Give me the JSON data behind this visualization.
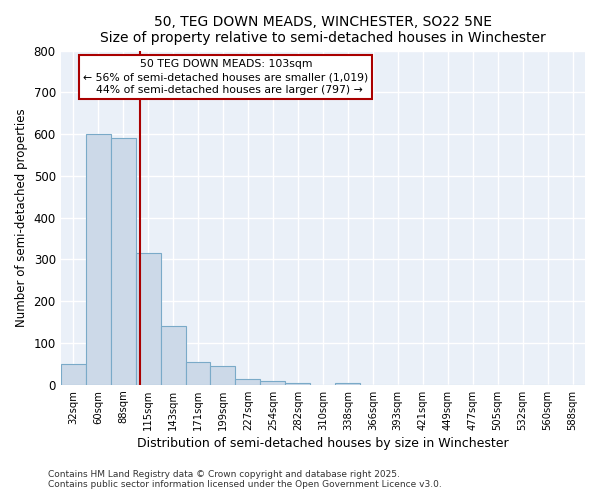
{
  "title": "50, TEG DOWN MEADS, WINCHESTER, SO22 5NE",
  "subtitle": "Size of property relative to semi-detached houses in Winchester",
  "xlabel": "Distribution of semi-detached houses by size in Winchester",
  "ylabel": "Number of semi-detached properties",
  "bar_labels": [
    "32sqm",
    "60sqm",
    "88sqm",
    "115sqm",
    "143sqm",
    "171sqm",
    "199sqm",
    "227sqm",
    "254sqm",
    "282sqm",
    "310sqm",
    "338sqm",
    "366sqm",
    "393sqm",
    "421sqm",
    "449sqm",
    "477sqm",
    "505sqm",
    "532sqm",
    "560sqm",
    "588sqm"
  ],
  "bar_values": [
    50,
    600,
    590,
    315,
    140,
    55,
    45,
    15,
    10,
    5,
    0,
    5,
    0,
    0,
    0,
    0,
    0,
    0,
    0,
    0,
    0
  ],
  "bar_color": "#ccd9e8",
  "bar_edgecolor": "#7aaac8",
  "property_label": "50 TEG DOWN MEADS: 103sqm",
  "pct_smaller": 56,
  "n_smaller": 1019,
  "pct_larger": 44,
  "n_larger": 797,
  "vline_x_index": 2.67,
  "vline_color": "#aa0000",
  "annotation_box_edgecolor": "#aa0000",
  "ylim": [
    0,
    800
  ],
  "yticks": [
    0,
    100,
    200,
    300,
    400,
    500,
    600,
    700,
    800
  ],
  "footer1": "Contains HM Land Registry data © Crown copyright and database right 2025.",
  "footer2": "Contains public sector information licensed under the Open Government Licence v3.0.",
  "bg_color": "#ffffff",
  "plot_bg_color": "#eaf0f8"
}
